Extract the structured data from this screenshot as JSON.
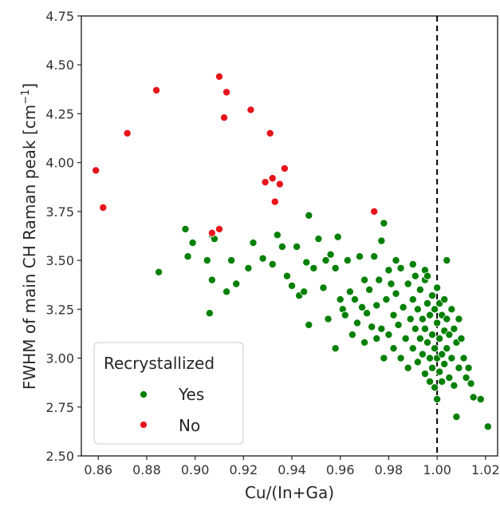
{
  "chart_data": {
    "type": "scatter",
    "xlabel": "Cu/(In+Ga)",
    "ylabel_main": "FWHM of main CH Raman peak [cm",
    "ylabel_sup": "−1",
    "ylabel_end": "]",
    "xlim": [
      0.853,
      1.025
    ],
    "ylim": [
      2.5,
      4.75
    ],
    "x_ticks": [
      "0.86",
      "0.88",
      "0.90",
      "0.92",
      "0.94",
      "0.96",
      "0.98",
      "1.00",
      "1.02"
    ],
    "y_ticks": [
      "2.50",
      "2.75",
      "3.00",
      "3.25",
      "3.50",
      "3.75",
      "4.00",
      "4.25",
      "4.50",
      "4.75"
    ],
    "vline_x": 1.0,
    "legend": {
      "title": "Recrystallized",
      "placement": "lower-left"
    },
    "series": [
      {
        "name": "Yes",
        "color": "#008000",
        "points": [
          [
            0.885,
            3.44
          ],
          [
            0.896,
            3.66
          ],
          [
            0.897,
            3.52
          ],
          [
            0.899,
            3.59
          ],
          [
            0.905,
            3.5
          ],
          [
            0.906,
            3.23
          ],
          [
            0.907,
            3.63
          ],
          [
            0.907,
            3.4
          ],
          [
            0.908,
            3.61
          ],
          [
            0.913,
            3.34
          ],
          [
            0.915,
            3.5
          ],
          [
            0.917,
            3.38
          ],
          [
            0.922,
            3.46
          ],
          [
            0.924,
            3.59
          ],
          [
            0.928,
            3.51
          ],
          [
            0.932,
            3.48
          ],
          [
            0.934,
            3.63
          ],
          [
            0.936,
            3.57
          ],
          [
            0.938,
            3.42
          ],
          [
            0.94,
            3.37
          ],
          [
            0.942,
            3.57
          ],
          [
            0.943,
            3.32
          ],
          [
            0.945,
            3.34
          ],
          [
            0.946,
            3.49
          ],
          [
            0.947,
            3.73
          ],
          [
            0.947,
            3.17
          ],
          [
            0.949,
            3.46
          ],
          [
            0.951,
            3.61
          ],
          [
            0.953,
            3.36
          ],
          [
            0.954,
            3.5
          ],
          [
            0.955,
            3.2
          ],
          [
            0.956,
            3.53
          ],
          [
            0.958,
            3.46
          ],
          [
            0.958,
            3.05
          ],
          [
            0.959,
            3.62
          ],
          [
            0.96,
            3.3
          ],
          [
            0.961,
            3.25
          ],
          [
            0.962,
            3.22
          ],
          [
            0.963,
            3.5
          ],
          [
            0.964,
            3.34
          ],
          [
            0.965,
            3.12
          ],
          [
            0.966,
            3.3
          ],
          [
            0.967,
            3.18
          ],
          [
            0.968,
            3.52
          ],
          [
            0.969,
            3.26
          ],
          [
            0.97,
            3.4
          ],
          [
            0.97,
            3.08
          ],
          [
            0.971,
            3.23
          ],
          [
            0.972,
            3.35
          ],
          [
            0.973,
            3.16
          ],
          [
            0.974,
            3.52
          ],
          [
            0.975,
            3.27
          ],
          [
            0.975,
            3.1
          ],
          [
            0.976,
            3.4
          ],
          [
            0.977,
            3.15
          ],
          [
            0.978,
            3.69
          ],
          [
            0.978,
            3.0
          ],
          [
            0.979,
            3.3
          ],
          [
            0.98,
            3.45
          ],
          [
            0.98,
            3.12
          ],
          [
            0.981,
            3.38
          ],
          [
            0.982,
            3.22
          ],
          [
            0.982,
            3.05
          ],
          [
            0.983,
            3.33
          ],
          [
            0.984,
            3.17
          ],
          [
            0.985,
            3.46
          ],
          [
            0.985,
            3.0
          ],
          [
            0.986,
            3.26
          ],
          [
            0.987,
            3.1
          ],
          [
            0.988,
            3.38
          ],
          [
            0.988,
            2.95
          ],
          [
            0.989,
            3.2
          ],
          [
            0.99,
            3.3
          ],
          [
            0.99,
            3.05
          ],
          [
            0.991,
            3.42
          ],
          [
            0.991,
            3.15
          ],
          [
            0.992,
            3.25
          ],
          [
            0.992,
            2.98
          ],
          [
            0.993,
            3.35
          ],
          [
            0.993,
            3.1
          ],
          [
            0.994,
            3.2
          ],
          [
            0.994,
            3.02
          ],
          [
            0.995,
            3.4
          ],
          [
            0.995,
            3.15
          ],
          [
            0.995,
            2.92
          ],
          [
            0.996,
            3.28
          ],
          [
            0.996,
            3.08
          ],
          [
            0.997,
            3.22
          ],
          [
            0.997,
            3.0
          ],
          [
            0.997,
            2.88
          ],
          [
            0.998,
            3.32
          ],
          [
            0.998,
            3.12
          ],
          [
            0.998,
            2.95
          ],
          [
            0.999,
            3.25
          ],
          [
            0.999,
            3.05
          ],
          [
            0.999,
            2.85
          ],
          [
            1.0,
            3.36
          ],
          [
            1.0,
            3.18
          ],
          [
            1.0,
            3.0
          ],
          [
            1.0,
            2.79
          ],
          [
            1.001,
            3.28
          ],
          [
            1.001,
            3.1
          ],
          [
            1.001,
            2.93
          ],
          [
            1.002,
            3.22
          ],
          [
            1.002,
            3.02
          ],
          [
            1.002,
            2.88
          ],
          [
            1.003,
            3.3
          ],
          [
            1.003,
            3.14
          ],
          [
            1.003,
            2.97
          ],
          [
            1.004,
            3.5
          ],
          [
            1.004,
            3.2
          ],
          [
            1.004,
            3.05
          ],
          [
            1.005,
            3.12
          ],
          [
            1.005,
            2.9
          ],
          [
            1.006,
            3.25
          ],
          [
            1.006,
            3.0
          ],
          [
            1.007,
            3.15
          ],
          [
            1.007,
            2.86
          ],
          [
            1.008,
            3.08
          ],
          [
            1.008,
            2.7
          ],
          [
            1.009,
            3.2
          ],
          [
            1.009,
            2.95
          ],
          [
            1.01,
            3.1
          ],
          [
            1.011,
            3.0
          ],
          [
            1.012,
            2.9
          ],
          [
            1.013,
            2.95
          ],
          [
            1.014,
            2.87
          ],
          [
            1.015,
            2.8
          ],
          [
            1.018,
            2.79
          ],
          [
            1.021,
            2.65
          ],
          [
            0.977,
            3.6
          ],
          [
            0.983,
            3.5
          ],
          [
            0.99,
            3.48
          ],
          [
            0.995,
            3.45
          ],
          [
            0.996,
            3.42
          ]
        ]
      },
      {
        "name": "No",
        "color": "#e8141b",
        "points": [
          [
            0.859,
            3.96
          ],
          [
            0.862,
            3.77
          ],
          [
            0.872,
            4.15
          ],
          [
            0.884,
            4.37
          ],
          [
            0.907,
            3.64
          ],
          [
            0.91,
            4.44
          ],
          [
            0.91,
            3.66
          ],
          [
            0.912,
            4.23
          ],
          [
            0.913,
            4.36
          ],
          [
            0.923,
            4.27
          ],
          [
            0.929,
            3.9
          ],
          [
            0.931,
            4.15
          ],
          [
            0.932,
            3.92
          ],
          [
            0.933,
            3.8
          ],
          [
            0.935,
            3.89
          ],
          [
            0.937,
            3.97
          ],
          [
            0.974,
            3.75
          ]
        ]
      }
    ]
  }
}
